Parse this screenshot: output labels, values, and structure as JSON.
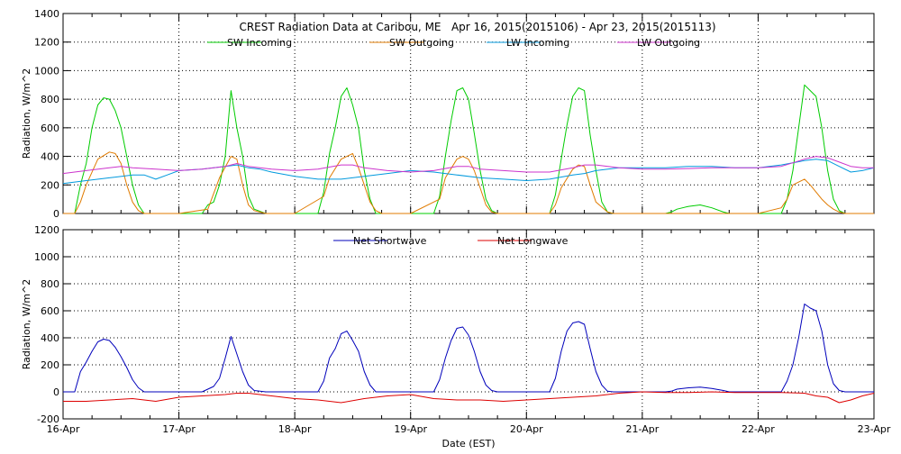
{
  "chart_data": [
    {
      "type": "line",
      "title": "CREST Radiation Data at Caribou, ME   Apr 16, 2015(2015106) - Apr 23, 2015(2015113)",
      "xlabel": "",
      "ylabel": "Radiation, W/m^2",
      "xlim": [
        16,
        23
      ],
      "ylim": [
        0,
        1400
      ],
      "yticks": [
        "0",
        "200",
        "400",
        "600",
        "800",
        "1000",
        "1200",
        "1400"
      ],
      "grid": true,
      "legend_position": "top",
      "series": [
        {
          "name": "SW Incoming",
          "color": "#00cc00",
          "x": [
            16.0,
            16.1,
            16.15,
            16.2,
            16.25,
            16.3,
            16.35,
            16.4,
            16.45,
            16.5,
            16.55,
            16.6,
            16.65,
            16.7,
            16.75,
            16.8,
            17.0,
            17.2,
            17.25,
            17.3,
            17.35,
            17.4,
            17.45,
            17.5,
            17.55,
            17.6,
            17.65,
            17.75,
            18.0,
            18.2,
            18.25,
            18.3,
            18.35,
            18.4,
            18.45,
            18.5,
            18.55,
            18.6,
            18.65,
            18.7,
            18.75,
            19.0,
            19.2,
            19.25,
            19.3,
            19.35,
            19.4,
            19.45,
            19.5,
            19.55,
            19.6,
            19.65,
            19.7,
            19.75,
            20.0,
            20.2,
            20.25,
            20.3,
            20.35,
            20.4,
            20.45,
            20.5,
            20.55,
            20.6,
            20.65,
            20.7,
            20.75,
            21.0,
            21.2,
            21.25,
            21.3,
            21.4,
            21.5,
            21.6,
            21.7,
            21.75,
            22.0,
            22.2,
            22.25,
            22.3,
            22.35,
            22.4,
            22.45,
            22.5,
            22.55,
            22.6,
            22.65,
            22.7,
            22.75,
            22.8,
            23.0
          ],
          "y": [
            0,
            0,
            200,
            350,
            600,
            760,
            810,
            800,
            720,
            600,
            400,
            200,
            60,
            0,
            0,
            0,
            0,
            0,
            60,
            80,
            200,
            400,
            860,
            600,
            400,
            120,
            30,
            0,
            0,
            0,
            150,
            420,
            600,
            820,
            880,
            760,
            600,
            300,
            100,
            0,
            0,
            0,
            0,
            120,
            400,
            650,
            860,
            880,
            800,
            560,
            300,
            100,
            20,
            0,
            0,
            0,
            130,
            380,
            620,
            820,
            880,
            860,
            550,
            300,
            80,
            10,
            0,
            0,
            0,
            10,
            30,
            50,
            60,
            40,
            10,
            0,
            0,
            0,
            100,
            300,
            600,
            900,
            860,
            820,
            600,
            300,
            100,
            20,
            0,
            0,
            0
          ]
        },
        {
          "name": "SW Outgoing",
          "color": "#e07b00",
          "x": [
            16.0,
            16.1,
            16.15,
            16.2,
            16.3,
            16.4,
            16.45,
            16.5,
            16.55,
            16.6,
            16.65,
            16.7,
            16.8,
            17.0,
            17.25,
            17.35,
            17.45,
            17.5,
            17.55,
            17.6,
            17.65,
            17.7,
            17.75,
            18.0,
            18.25,
            18.3,
            18.4,
            18.45,
            18.5,
            18.55,
            18.6,
            18.65,
            18.7,
            18.75,
            19.0,
            19.25,
            19.3,
            19.4,
            19.45,
            19.5,
            19.55,
            19.6,
            19.65,
            19.7,
            19.75,
            20.0,
            20.2,
            20.25,
            20.3,
            20.4,
            20.45,
            20.5,
            20.55,
            20.6,
            20.7,
            20.75,
            21.0,
            22.0,
            22.2,
            22.25,
            22.3,
            22.4,
            22.45,
            22.5,
            22.55,
            22.6,
            22.65,
            22.7,
            22.75,
            22.8,
            23.0
          ],
          "y": [
            0,
            0,
            80,
            200,
            380,
            430,
            420,
            350,
            200,
            80,
            20,
            0,
            0,
            0,
            30,
            250,
            400,
            380,
            200,
            60,
            20,
            10,
            0,
            0,
            120,
            250,
            380,
            400,
            420,
            320,
            200,
            80,
            20,
            0,
            0,
            100,
            250,
            380,
            400,
            380,
            300,
            180,
            60,
            10,
            0,
            0,
            0,
            60,
            180,
            310,
            340,
            330,
            200,
            80,
            10,
            0,
            0,
            0,
            40,
            100,
            200,
            240,
            200,
            150,
            100,
            60,
            30,
            10,
            0,
            0,
            0
          ]
        },
        {
          "name": "LW Incoming",
          "color": "#0099dd",
          "x": [
            16.0,
            16.2,
            16.4,
            16.6,
            16.7,
            16.8,
            16.9,
            17.0,
            17.2,
            17.4,
            17.5,
            17.6,
            17.7,
            17.8,
            18.0,
            18.2,
            18.4,
            18.6,
            18.8,
            19.0,
            19.2,
            19.4,
            19.6,
            19.8,
            20.0,
            20.2,
            20.4,
            20.5,
            20.6,
            20.8,
            21.0,
            21.2,
            21.4,
            21.6,
            21.8,
            22.0,
            22.2,
            22.4,
            22.5,
            22.6,
            22.7,
            22.8,
            22.9,
            23.0
          ],
          "y": [
            210,
            230,
            250,
            270,
            270,
            240,
            270,
            300,
            310,
            330,
            340,
            320,
            310,
            290,
            260,
            240,
            240,
            260,
            280,
            300,
            290,
            270,
            250,
            240,
            230,
            240,
            270,
            280,
            300,
            320,
            320,
            320,
            330,
            330,
            320,
            320,
            340,
            370,
            380,
            370,
            330,
            290,
            300,
            320
          ]
        },
        {
          "name": "LW Outgoing",
          "color": "#cc33cc",
          "x": [
            16.0,
            16.2,
            16.4,
            16.5,
            16.6,
            16.8,
            17.0,
            17.2,
            17.4,
            17.5,
            17.6,
            17.8,
            18.0,
            18.2,
            18.4,
            18.5,
            18.6,
            18.8,
            19.0,
            19.2,
            19.4,
            19.5,
            19.6,
            19.8,
            20.0,
            20.2,
            20.4,
            20.5,
            20.6,
            20.8,
            21.0,
            21.2,
            21.4,
            21.6,
            21.8,
            22.0,
            22.2,
            22.4,
            22.5,
            22.6,
            22.7,
            22.8,
            22.9,
            23.0
          ],
          "y": [
            280,
            300,
            320,
            330,
            320,
            310,
            300,
            310,
            330,
            350,
            330,
            310,
            300,
            310,
            340,
            340,
            320,
            300,
            290,
            300,
            330,
            330,
            310,
            300,
            290,
            290,
            320,
            340,
            340,
            320,
            310,
            310,
            315,
            320,
            320,
            320,
            330,
            380,
            400,
            390,
            360,
            330,
            320,
            320
          ]
        }
      ]
    },
    {
      "type": "line",
      "title": "",
      "xlabel": "Date (EST)",
      "ylabel": "Radiation, W/m^2",
      "xlim": [
        16,
        23
      ],
      "ylim": [
        -200,
        1200
      ],
      "xticks": [
        "16-Apr",
        "17-Apr",
        "18-Apr",
        "19-Apr",
        "20-Apr",
        "21-Apr",
        "22-Apr",
        "23-Apr"
      ],
      "yticks": [
        "-200",
        "0",
        "200",
        "400",
        "600",
        "800",
        "1000",
        "1200"
      ],
      "grid": true,
      "legend_position": "top",
      "series": [
        {
          "name": "Net Shortwave",
          "color": "#0000bb",
          "x": [
            16.0,
            16.1,
            16.15,
            16.2,
            16.25,
            16.3,
            16.35,
            16.4,
            16.45,
            16.5,
            16.55,
            16.6,
            16.65,
            16.7,
            16.75,
            16.8,
            17.0,
            17.2,
            17.25,
            17.3,
            17.35,
            17.4,
            17.45,
            17.5,
            17.55,
            17.6,
            17.65,
            17.75,
            18.0,
            18.2,
            18.25,
            18.3,
            18.35,
            18.4,
            18.45,
            18.5,
            18.55,
            18.6,
            18.65,
            18.7,
            18.75,
            19.0,
            19.2,
            19.25,
            19.3,
            19.35,
            19.4,
            19.45,
            19.5,
            19.55,
            19.6,
            19.65,
            19.7,
            19.75,
            20.0,
            20.2,
            20.25,
            20.3,
            20.35,
            20.4,
            20.45,
            20.5,
            20.55,
            20.6,
            20.65,
            20.7,
            20.75,
            21.0,
            21.2,
            21.25,
            21.3,
            21.4,
            21.5,
            21.6,
            21.7,
            21.75,
            22.0,
            22.2,
            22.25,
            22.3,
            22.35,
            22.4,
            22.45,
            22.5,
            22.55,
            22.6,
            22.65,
            22.7,
            22.75,
            22.8,
            23.0
          ],
          "y": [
            0,
            0,
            150,
            220,
            300,
            370,
            390,
            380,
            330,
            260,
            180,
            90,
            30,
            0,
            0,
            0,
            0,
            0,
            20,
            40,
            100,
            250,
            410,
            280,
            150,
            50,
            10,
            0,
            0,
            0,
            80,
            250,
            320,
            430,
            450,
            380,
            300,
            150,
            50,
            0,
            0,
            0,
            0,
            90,
            250,
            380,
            470,
            480,
            420,
            300,
            150,
            50,
            10,
            0,
            0,
            0,
            100,
            300,
            450,
            510,
            520,
            500,
            320,
            150,
            50,
            5,
            0,
            0,
            0,
            5,
            20,
            30,
            35,
            25,
            10,
            0,
            0,
            0,
            80,
            200,
            400,
            650,
            620,
            600,
            450,
            200,
            60,
            10,
            0,
            0,
            0
          ]
        },
        {
          "name": "Net Longwave",
          "color": "#dd0000",
          "x": [
            16.0,
            16.2,
            16.4,
            16.6,
            16.8,
            17.0,
            17.2,
            17.4,
            17.5,
            17.6,
            17.8,
            18.0,
            18.2,
            18.4,
            18.6,
            18.8,
            19.0,
            19.2,
            19.4,
            19.6,
            19.8,
            20.0,
            20.2,
            20.4,
            20.6,
            20.8,
            21.0,
            21.2,
            21.4,
            21.6,
            21.8,
            22.0,
            22.2,
            22.4,
            22.5,
            22.6,
            22.7,
            22.8,
            22.9,
            23.0
          ],
          "y": [
            -70,
            -70,
            -60,
            -50,
            -70,
            -40,
            -30,
            -20,
            -10,
            -10,
            -30,
            -50,
            -60,
            -80,
            -50,
            -30,
            -20,
            -50,
            -60,
            -60,
            -70,
            -60,
            -50,
            -40,
            -30,
            -10,
            0,
            -5,
            -5,
            0,
            -5,
            -5,
            -5,
            -10,
            -30,
            -40,
            -80,
            -60,
            -30,
            -10
          ]
        }
      ]
    }
  ]
}
